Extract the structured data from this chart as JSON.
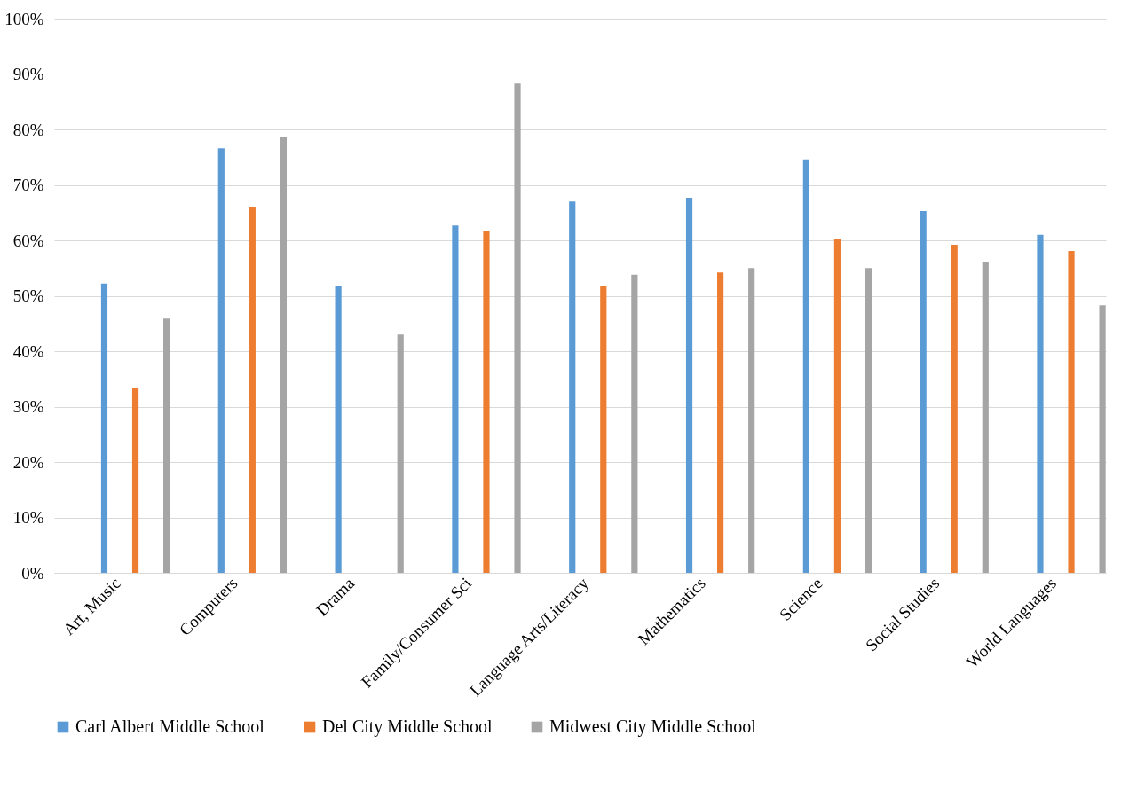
{
  "chart_data": {
    "type": "bar",
    "categories": [
      "Art, Music",
      "Computers",
      "Drama",
      "Family/Consumer Sci",
      "Language Arts/Literacy",
      "Mathematics",
      "Science",
      "Social Studies",
      "World Languages"
    ],
    "series": [
      {
        "name": "Carl Albert Middle School",
        "color": "#5b9bd5",
        "values": [
          52.2,
          76.6,
          51.7,
          62.7,
          67.0,
          67.7,
          74.6,
          65.3,
          61.0
        ]
      },
      {
        "name": "Del City Middle School",
        "color": "#ed7d31",
        "values": [
          33.4,
          66.1,
          null,
          61.6,
          51.8,
          54.2,
          60.2,
          59.2,
          58.1
        ]
      },
      {
        "name": "Midwest City Middle School",
        "color": "#a5a5a5",
        "values": [
          45.9,
          78.6,
          43.0,
          88.3,
          53.8,
          55.0,
          55.0,
          56.0,
          48.3
        ]
      }
    ],
    "ylim": [
      0,
      100
    ],
    "yticks": [
      {
        "value": 0,
        "label": "0%"
      },
      {
        "value": 10,
        "label": "10%"
      },
      {
        "value": 20,
        "label": "20%"
      },
      {
        "value": 30,
        "label": "30%"
      },
      {
        "value": 40,
        "label": "40%"
      },
      {
        "value": 50,
        "label": "50%"
      },
      {
        "value": 60,
        "label": "60%"
      },
      {
        "value": 70,
        "label": "70%"
      },
      {
        "value": 80,
        "label": "80%"
      },
      {
        "value": 90,
        "label": "90%"
      },
      {
        "value": 100,
        "label": "100%"
      }
    ],
    "grid": "y",
    "legend": "bottom"
  }
}
